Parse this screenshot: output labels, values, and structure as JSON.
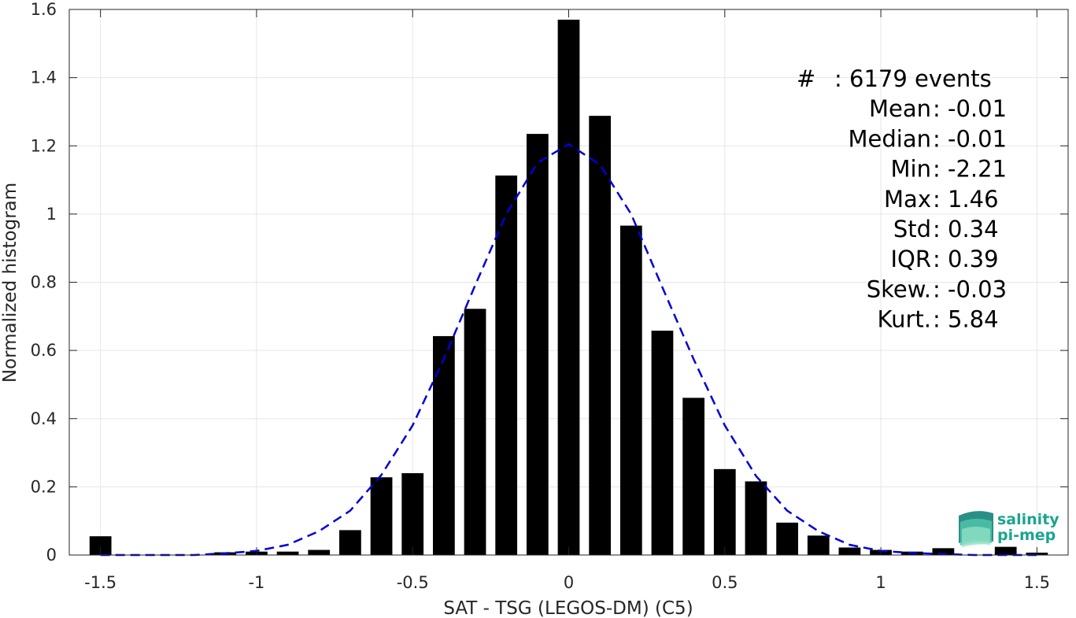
{
  "chart_data": {
    "type": "bar",
    "xlabel": "SAT - TSG (LEGOS-DM) (C5)",
    "ylabel": "Normalized histogram",
    "xlim": [
      -1.6,
      1.6
    ],
    "ylim": [
      0,
      1.6
    ],
    "xticks": [
      -1.5,
      -1,
      -0.5,
      0,
      0.5,
      1,
      1.5
    ],
    "xtick_labels": [
      "-1.5",
      "-1",
      "-0.5",
      "0",
      "0.5",
      "1",
      "1.5"
    ],
    "yticks": [
      0,
      0.2,
      0.4,
      0.6,
      0.8,
      1,
      1.2,
      1.4,
      1.6
    ],
    "ytick_labels": [
      "0",
      "0.2",
      "0.4",
      "0.6",
      "0.8",
      "1",
      "1.2",
      "1.4",
      "1.6"
    ],
    "grid": true,
    "bin_width": 0.1,
    "bar_color": "#000000",
    "x": [
      -1.5,
      -1.1,
      -1.0,
      -0.9,
      -0.8,
      -0.7,
      -0.6,
      -0.5,
      -0.4,
      -0.3,
      -0.2,
      -0.1,
      0.0,
      0.1,
      0.2,
      0.3,
      0.4,
      0.5,
      0.6,
      0.7,
      0.8,
      0.9,
      1.0,
      1.1,
      1.2,
      1.4,
      1.5
    ],
    "values": [
      0.055,
      0.008,
      0.01,
      0.01,
      0.015,
      0.073,
      0.228,
      0.24,
      0.642,
      0.722,
      1.113,
      1.235,
      1.57,
      1.288,
      0.966,
      0.658,
      0.461,
      0.252,
      0.216,
      0.095,
      0.057,
      0.022,
      0.015,
      0.01,
      0.02,
      0.024,
      0.007
    ],
    "fit_curve": {
      "style": "dashed",
      "color": "#0000d9",
      "x": [
        -1.5,
        -1.4,
        -1.3,
        -1.2,
        -1.1,
        -1.0,
        -0.9,
        -0.8,
        -0.7,
        -0.6,
        -0.5,
        -0.4,
        -0.3,
        -0.2,
        -0.1,
        0.0,
        0.1,
        0.2,
        0.3,
        0.4,
        0.5,
        0.6,
        0.7,
        0.8,
        0.9,
        1.0,
        1.1,
        1.2,
        1.3,
        1.4,
        1.5
      ],
      "y": [
        0.0,
        0.0,
        0.0,
        0.0,
        0.005,
        0.012,
        0.03,
        0.07,
        0.13,
        0.235,
        0.38,
        0.575,
        0.79,
        1.0,
        1.15,
        1.205,
        1.145,
        1.0,
        0.785,
        0.575,
        0.38,
        0.232,
        0.13,
        0.07,
        0.03,
        0.012,
        0.006,
        0.003,
        0.0,
        0.0,
        0.0
      ]
    },
    "stats": [
      {
        "label": "#  ",
        "value": ": 6179 events"
      },
      {
        "label": "Mean ",
        "value": ": -0.01"
      },
      {
        "label": "Median ",
        "value": ": -0.01"
      },
      {
        "label": "Min ",
        "value": ": -2.21"
      },
      {
        "label": "Max ",
        "value": ": 1.46"
      },
      {
        "label": "Std ",
        "value": ": 0.34"
      },
      {
        "label": "IQR ",
        "value": ": 0.39"
      },
      {
        "label": "Skew. ",
        "value": ": -0.03"
      },
      {
        "label": "Kurt. ",
        "value": ": 5.84"
      }
    ]
  },
  "logo": {
    "line1": "salinity",
    "line2": "pi-mep",
    "color": "#1aa58f"
  }
}
